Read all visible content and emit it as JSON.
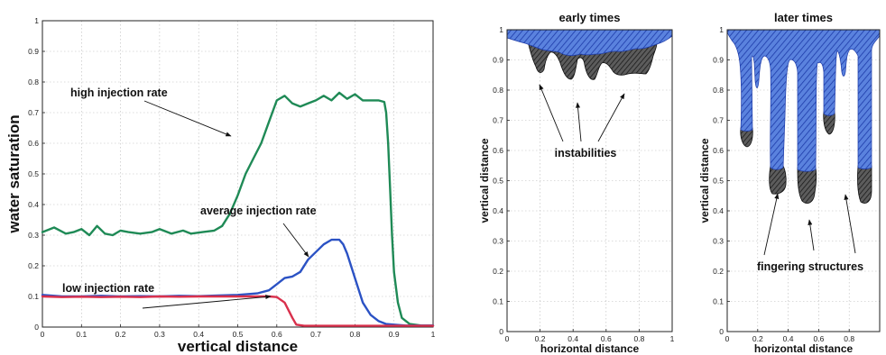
{
  "chart_data": [
    {
      "type": "line",
      "xlabel": "vertical distance",
      "ylabel": "water saturation",
      "xlim": [
        0,
        1
      ],
      "ylim": [
        0,
        1
      ],
      "x_ticks": [
        "0",
        "0.1",
        "0.2",
        "0.3",
        "0.4",
        "0.5",
        "0.6",
        "0.7",
        "0.8",
        "0.9",
        "1"
      ],
      "y_ticks": [
        "0",
        "0.1",
        "0.2",
        "0.3",
        "0.4",
        "0.5",
        "0.6",
        "0.7",
        "0.8",
        "0.9",
        "1"
      ],
      "grid": true,
      "series": [
        {
          "name": "high injection rate",
          "color": "#1f8a56",
          "x": [
            0,
            0.03,
            0.06,
            0.08,
            0.1,
            0.12,
            0.14,
            0.16,
            0.18,
            0.2,
            0.22,
            0.25,
            0.28,
            0.3,
            0.33,
            0.36,
            0.38,
            0.41,
            0.44,
            0.46,
            0.48,
            0.5,
            0.52,
            0.54,
            0.56,
            0.58,
            0.6,
            0.62,
            0.64,
            0.66,
            0.68,
            0.7,
            0.72,
            0.74,
            0.76,
            0.78,
            0.8,
            0.82,
            0.84,
            0.86,
            0.875,
            0.88,
            0.885,
            0.89,
            0.895,
            0.9,
            0.91,
            0.92,
            0.94,
            0.97,
            1.0
          ],
          "y": [
            0.31,
            0.325,
            0.305,
            0.31,
            0.32,
            0.3,
            0.33,
            0.305,
            0.3,
            0.315,
            0.31,
            0.305,
            0.31,
            0.32,
            0.305,
            0.315,
            0.305,
            0.31,
            0.315,
            0.33,
            0.37,
            0.43,
            0.5,
            0.55,
            0.6,
            0.67,
            0.74,
            0.755,
            0.73,
            0.72,
            0.73,
            0.74,
            0.755,
            0.74,
            0.765,
            0.745,
            0.76,
            0.74,
            0.74,
            0.74,
            0.735,
            0.7,
            0.6,
            0.45,
            0.3,
            0.18,
            0.08,
            0.03,
            0.01,
            0.005,
            0.005
          ]
        },
        {
          "name": "average injection rate",
          "color": "#2b52c4",
          "x": [
            0,
            0.05,
            0.1,
            0.15,
            0.2,
            0.25,
            0.3,
            0.35,
            0.4,
            0.45,
            0.5,
            0.55,
            0.58,
            0.6,
            0.62,
            0.64,
            0.66,
            0.68,
            0.7,
            0.72,
            0.74,
            0.76,
            0.77,
            0.78,
            0.8,
            0.82,
            0.84,
            0.86,
            0.88,
            0.9,
            0.93,
            1.0
          ],
          "y": [
            0.105,
            0.1,
            0.1,
            0.102,
            0.1,
            0.101,
            0.1,
            0.102,
            0.101,
            0.103,
            0.105,
            0.11,
            0.12,
            0.14,
            0.16,
            0.165,
            0.18,
            0.22,
            0.245,
            0.27,
            0.285,
            0.285,
            0.27,
            0.24,
            0.16,
            0.08,
            0.04,
            0.02,
            0.01,
            0.008,
            0.005,
            0.005
          ]
        },
        {
          "name": "low injection rate",
          "color": "#d9304c",
          "x": [
            0,
            0.05,
            0.1,
            0.15,
            0.2,
            0.25,
            0.3,
            0.35,
            0.4,
            0.45,
            0.5,
            0.55,
            0.58,
            0.6,
            0.62,
            0.64,
            0.65,
            0.67,
            0.7,
            0.8,
            0.9,
            1.0
          ],
          "y": [
            0.1,
            0.098,
            0.099,
            0.098,
            0.099,
            0.098,
            0.1,
            0.099,
            0.1,
            0.1,
            0.1,
            0.1,
            0.1,
            0.098,
            0.08,
            0.03,
            0.008,
            0.004,
            0.004,
            0.004,
            0.004,
            0.004
          ]
        }
      ],
      "annotations": [
        "high injection rate",
        "average injection rate",
        "low injection rate"
      ]
    },
    {
      "type": "area",
      "title": "early times",
      "xlabel": "horizontal distance",
      "ylabel": "vertical distance",
      "xlim": [
        0,
        1
      ],
      "ylim": [
        0,
        1
      ],
      "x_ticks": [
        "0",
        "0.2",
        "0.4",
        "0.6",
        "0.8",
        "1"
      ],
      "y_ticks": [
        "0",
        "0.1",
        "0.2",
        "0.3",
        "0.4",
        "0.5",
        "0.6",
        "0.7",
        "0.8",
        "0.9",
        "1"
      ],
      "grid": true,
      "annotations": [
        "instabilities"
      ]
    },
    {
      "type": "area",
      "title": "later times",
      "xlabel": "horizontal distance",
      "ylabel": "vertical distance",
      "xlim": [
        0,
        1
      ],
      "ylim": [
        0,
        1
      ],
      "x_ticks": [
        "0",
        "0.2",
        "0.4",
        "0.6",
        "0.8"
      ],
      "y_ticks": [
        "0",
        "0.1",
        "0.2",
        "0.3",
        "0.4",
        "0.5",
        "0.6",
        "0.7",
        "0.8",
        "0.9",
        "1"
      ],
      "grid": true,
      "annotations": [
        "fingering structures"
      ]
    }
  ]
}
